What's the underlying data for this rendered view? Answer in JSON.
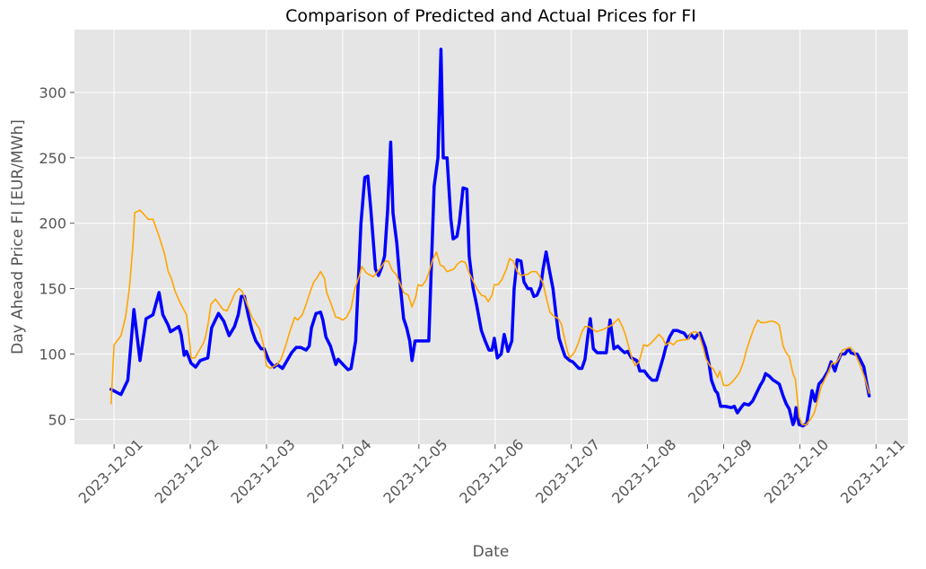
{
  "chart_data": {
    "type": "line",
    "title": "Comparison of Predicted and Actual Prices for FI",
    "x_label": "Date",
    "y_label": "Day Ahead Price FI [EUR/MWh]",
    "xlim": [
      -0.52,
      10.42
    ],
    "ylim": [
      31,
      348
    ],
    "xticks": [
      {
        "value": 0,
        "label": "2023-12-01"
      },
      {
        "value": 1,
        "label": "2023-12-02"
      },
      {
        "value": 2,
        "label": "2023-12-03"
      },
      {
        "value": 3,
        "label": "2023-12-04"
      },
      {
        "value": 4,
        "label": "2023-12-05"
      },
      {
        "value": 5,
        "label": "2023-12-06"
      },
      {
        "value": 6,
        "label": "2023-12-07"
      },
      {
        "value": 7,
        "label": "2023-12-08"
      },
      {
        "value": 8,
        "label": "2023-12-09"
      },
      {
        "value": 9,
        "label": "2023-12-10"
      },
      {
        "value": 10,
        "label": "2023-12-11"
      }
    ],
    "yticks": [
      50,
      100,
      150,
      200,
      250,
      300
    ],
    "grid": true,
    "series": [
      {
        "color": "#0000ff",
        "line_width": 3.5,
        "x": [
          -0.04,
          0.09,
          0.18,
          0.26,
          0.34,
          0.42,
          0.51,
          0.59,
          0.64,
          0.71,
          0.74,
          0.85,
          0.88,
          0.92,
          0.95,
          1.01,
          1.07,
          1.13,
          1.23,
          1.28,
          1.37,
          1.44,
          1.51,
          1.58,
          1.63,
          1.67,
          1.71,
          1.76,
          1.81,
          1.86,
          1.93,
          1.97,
          2.03,
          2.1,
          2.14,
          2.21,
          2.27,
          2.33,
          2.39,
          2.45,
          2.52,
          2.56,
          2.59,
          2.65,
          2.71,
          2.74,
          2.78,
          2.84,
          2.91,
          2.94,
          3.02,
          3.07,
          3.11,
          3.17,
          3.24,
          3.29,
          3.33,
          3.37,
          3.43,
          3.47,
          3.51,
          3.55,
          3.59,
          3.63,
          3.66,
          3.71,
          3.76,
          3.8,
          3.84,
          3.88,
          3.91,
          3.95,
          4.04,
          4.13,
          4.2,
          4.25,
          4.29,
          4.32,
          4.37,
          4.42,
          4.45,
          4.5,
          4.53,
          4.58,
          4.63,
          4.66,
          4.71,
          4.76,
          4.82,
          4.87,
          4.92,
          4.96,
          4.99,
          5.03,
          5.08,
          5.12,
          5.17,
          5.22,
          5.25,
          5.29,
          5.34,
          5.38,
          5.43,
          5.47,
          5.51,
          5.55,
          5.6,
          5.63,
          5.67,
          5.71,
          5.76,
          5.8,
          5.84,
          5.89,
          5.92,
          5.98,
          6.02,
          6.1,
          6.14,
          6.18,
          6.22,
          6.25,
          6.29,
          6.34,
          6.42,
          6.46,
          6.49,
          6.51,
          6.56,
          6.61,
          6.66,
          6.7,
          6.74,
          6.79,
          6.86,
          6.9,
          6.96,
          7.01,
          7.06,
          7.12,
          7.16,
          7.21,
          7.24,
          7.29,
          7.34,
          7.39,
          7.43,
          7.48,
          7.53,
          7.57,
          7.62,
          7.66,
          7.69,
          7.76,
          7.81,
          7.84,
          7.89,
          7.92,
          7.96,
          8.02,
          8.1,
          8.14,
          8.18,
          8.24,
          8.27,
          8.33,
          8.38,
          8.43,
          8.48,
          8.52,
          8.55,
          8.6,
          8.65,
          8.68,
          8.73,
          8.78,
          8.82,
          8.86,
          8.91,
          8.93,
          8.95,
          8.99,
          9.04,
          9.09,
          9.13,
          9.16,
          9.2,
          9.25,
          9.31,
          9.37,
          9.41,
          9.46,
          9.49,
          9.54,
          9.59,
          9.64,
          9.67,
          9.72,
          9.75,
          9.79,
          9.84,
          9.87,
          9.91
        ],
        "values": [
          73,
          69,
          80,
          134,
          95,
          127,
          130,
          147,
          130,
          122,
          117,
          121,
          115,
          99,
          102,
          93,
          90,
          95,
          97,
          120,
          131,
          125,
          114,
          121,
          130,
          144,
          144,
          130,
          118,
          110,
          104,
          104,
          95,
          90,
          92,
          89,
          95,
          101,
          105,
          105,
          103,
          106,
          120,
          131,
          132,
          126,
          113,
          106,
          92,
          96,
          91,
          88,
          89,
          110,
          200,
          235,
          236,
          210,
          165,
          160,
          166,
          175,
          210,
          262,
          208,
          185,
          150,
          127,
          120,
          110,
          95,
          110,
          110,
          110,
          228,
          250,
          333,
          250,
          250,
          203,
          188,
          190,
          200,
          227,
          226,
          175,
          151,
          137,
          118,
          110,
          103,
          103,
          112,
          97,
          100,
          115,
          102,
          110,
          150,
          172,
          171,
          155,
          150,
          150,
          144,
          145,
          152,
          165,
          178,
          165,
          150,
          130,
          112,
          103,
          98,
          95,
          94,
          89,
          89,
          96,
          115,
          127,
          104,
          101,
          101,
          101,
          117,
          126,
          104,
          106,
          103,
          101,
          102,
          97,
          95,
          87,
          87,
          83,
          80,
          80,
          88,
          98,
          105,
          113,
          118,
          118,
          117,
          116,
          112,
          115,
          112,
          115,
          116,
          105,
          92,
          80,
          72,
          70,
          60,
          60,
          59,
          60,
          55,
          60,
          62,
          61,
          64,
          70,
          76,
          80,
          85,
          83,
          80,
          79,
          77,
          68,
          62,
          58,
          46,
          49,
          59,
          46,
          45,
          47,
          61,
          72,
          64,
          77,
          81,
          87,
          94,
          87,
          93,
          100,
          100,
          104,
          101,
          100,
          100,
          96,
          90,
          80,
          68
        ]
      },
      {
        "color": "#ffa500",
        "line_width": 1.6,
        "x": [
          -0.04,
          0.0,
          0.09,
          0.15,
          0.2,
          0.25,
          0.27,
          0.34,
          0.45,
          0.51,
          0.59,
          0.66,
          0.71,
          0.75,
          0.8,
          0.86,
          0.95,
          0.99,
          1.01,
          1.06,
          1.17,
          1.2,
          1.24,
          1.27,
          1.33,
          1.43,
          1.48,
          1.53,
          1.59,
          1.64,
          1.68,
          1.72,
          1.81,
          1.91,
          1.96,
          2.0,
          2.05,
          2.14,
          2.19,
          2.25,
          2.31,
          2.37,
          2.41,
          2.47,
          2.52,
          2.57,
          2.62,
          2.66,
          2.71,
          2.76,
          2.79,
          2.85,
          2.91,
          2.94,
          3.0,
          3.05,
          3.11,
          3.16,
          3.22,
          3.25,
          3.31,
          3.4,
          3.46,
          3.51,
          3.56,
          3.6,
          3.65,
          3.7,
          3.76,
          3.8,
          3.86,
          3.91,
          3.96,
          3.99,
          4.04,
          4.09,
          4.13,
          4.18,
          4.23,
          4.28,
          4.32,
          4.37,
          4.46,
          4.51,
          4.56,
          4.61,
          4.66,
          4.71,
          4.76,
          4.82,
          4.87,
          4.91,
          4.96,
          4.99,
          5.04,
          5.09,
          5.15,
          5.19,
          5.24,
          5.29,
          5.34,
          5.43,
          5.48,
          5.54,
          5.58,
          5.63,
          5.68,
          5.72,
          5.77,
          5.83,
          5.87,
          5.9,
          5.95,
          5.98,
          6.04,
          6.09,
          6.14,
          6.18,
          6.23,
          6.28,
          6.33,
          6.43,
          6.53,
          6.62,
          6.67,
          6.71,
          6.76,
          6.8,
          6.84,
          6.89,
          6.95,
          7.0,
          7.04,
          7.09,
          7.15,
          7.2,
          7.24,
          7.29,
          7.34,
          7.39,
          7.48,
          7.53,
          7.57,
          7.62,
          7.67,
          7.73,
          7.77,
          7.82,
          7.87,
          7.92,
          7.95,
          8.0,
          8.06,
          8.12,
          8.16,
          8.21,
          8.26,
          8.3,
          8.35,
          8.4,
          8.45,
          8.49,
          8.55,
          8.6,
          8.65,
          8.69,
          8.73,
          8.78,
          8.82,
          8.86,
          8.91,
          8.94,
          8.99,
          9.03,
          9.08,
          9.14,
          9.19,
          9.24,
          9.28,
          9.33,
          9.38,
          9.42,
          9.47,
          9.52,
          9.56,
          9.61,
          9.66,
          9.71,
          9.75,
          9.8,
          9.85,
          9.91
        ],
        "values": [
          62,
          107,
          114,
          128,
          150,
          185,
          208,
          210,
          203,
          203,
          190,
          177,
          163,
          158,
          148,
          140,
          130,
          110,
          97,
          97,
          108,
          113,
          125,
          138,
          142,
          134,
          133,
          139,
          147,
          150,
          148,
          142,
          128,
          119,
          107,
          91,
          89,
          92,
          96,
          106,
          118,
          128,
          126,
          130,
          138,
          147,
          155,
          158,
          163,
          158,
          147,
          138,
          128,
          128,
          126,
          128,
          135,
          150,
          160,
          167,
          162,
          159,
          163,
          167,
          171,
          171,
          164,
          161,
          153,
          147,
          145,
          136,
          144,
          153,
          152,
          156,
          162,
          172,
          178,
          168,
          167,
          163,
          165,
          169,
          171,
          170,
          162,
          156,
          150,
          145,
          144,
          140,
          145,
          153,
          153,
          157,
          165,
          173,
          171,
          163,
          160,
          161,
          163,
          163,
          160,
          154,
          141,
          132,
          129,
          127,
          123,
          115,
          102,
          97,
          101,
          108,
          117,
          121,
          121,
          119,
          117,
          119,
          122,
          127,
          121,
          115,
          104,
          96,
          91,
          94,
          107,
          106,
          108,
          111,
          115,
          112,
          107,
          109,
          107,
          110,
          111,
          111,
          116,
          117,
          116,
          105,
          96,
          91,
          88,
          82,
          87,
          76,
          76,
          79,
          82,
          86,
          94,
          103,
          112,
          120,
          126,
          124,
          124,
          125,
          125,
          124,
          122,
          106,
          101,
          98,
          85,
          81,
          52,
          46,
          46,
          50,
          55,
          66,
          75,
          81,
          87,
          93,
          93,
          97,
          103,
          104,
          105,
          102,
          97,
          90,
          82,
          70
        ]
      }
    ]
  }
}
